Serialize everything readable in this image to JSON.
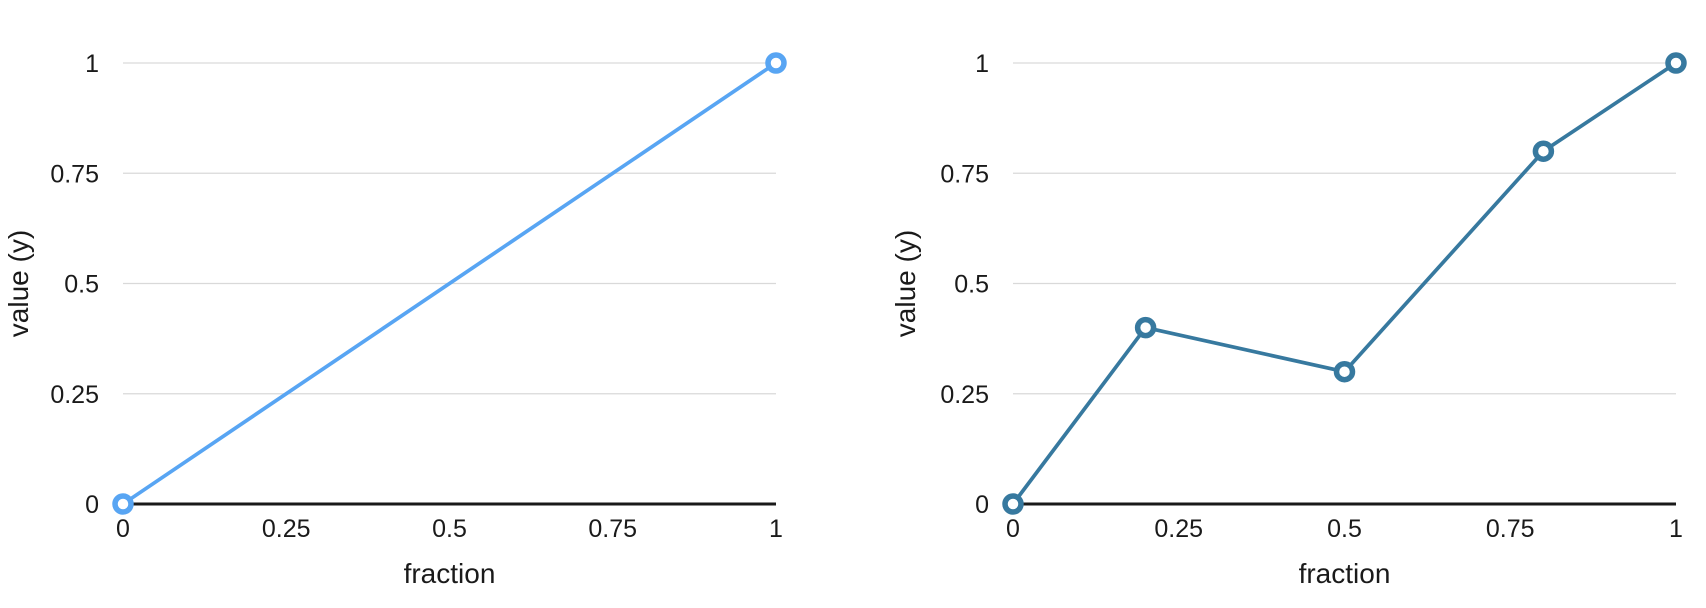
{
  "figure": {
    "background_color": "#ffffff",
    "text_color": "#1a1a1a",
    "layout": "two line charts side by side"
  },
  "chart_data": [
    {
      "type": "line",
      "title": "",
      "xlabel": "fraction",
      "ylabel": "value (y)",
      "x": [
        0,
        1
      ],
      "y": [
        0,
        1
      ],
      "xlim": [
        0,
        1
      ],
      "ylim": [
        0,
        1
      ],
      "xticks": {
        "values": [
          0,
          0.25,
          0.5,
          0.75,
          1
        ],
        "labels": [
          "0",
          "0.25",
          "0.5",
          "0.75",
          "1"
        ]
      },
      "yticks": {
        "values": [
          0,
          0.25,
          0.5,
          0.75,
          1
        ],
        "labels": [
          "0",
          "0.25",
          "0.5",
          "0.75",
          "1"
        ]
      },
      "grid": "horizontal-only",
      "grid_color": "#d9d9d9",
      "axis_color": "#1a1a1a",
      "text_color": "#1a1a1a",
      "legend": "none",
      "line_color": "#58a5f3",
      "marker": {
        "shape": "open-circle",
        "fill": "#ffffff",
        "stroke": "#58a5f3"
      }
    },
    {
      "type": "line",
      "title": "",
      "xlabel": "fraction",
      "ylabel": "value (y)",
      "x": [
        0,
        0.2,
        0.5,
        0.8,
        1
      ],
      "y": [
        0,
        0.4,
        0.3,
        0.8,
        1
      ],
      "xlim": [
        0,
        1
      ],
      "ylim": [
        0,
        1
      ],
      "xticks": {
        "values": [
          0,
          0.25,
          0.5,
          0.75,
          1
        ],
        "labels": [
          "0",
          "0.25",
          "0.5",
          "0.75",
          "1"
        ]
      },
      "yticks": {
        "values": [
          0,
          0.25,
          0.5,
          0.75,
          1
        ],
        "labels": [
          "0",
          "0.25",
          "0.5",
          "0.75",
          "1"
        ]
      },
      "grid": "horizontal-only",
      "grid_color": "#d9d9d9",
      "axis_color": "#1a1a1a",
      "text_color": "#1a1a1a",
      "legend": "none",
      "line_color": "#37799f",
      "marker": {
        "shape": "open-circle",
        "fill": "#ffffff",
        "stroke": "#37799f"
      }
    }
  ]
}
